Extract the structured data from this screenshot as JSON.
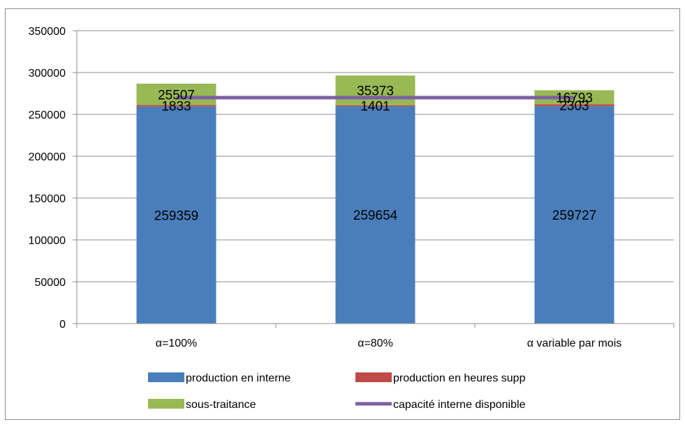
{
  "chart_data": {
    "type": "bar",
    "stacked": true,
    "categories": [
      "α=100%",
      "α=80%",
      "α variable par mois"
    ],
    "series": [
      {
        "name": "production en interne",
        "values": [
          259359,
          259654,
          259727
        ],
        "color": "#4a7ebb"
      },
      {
        "name": "production en heures supp",
        "values": [
          1833,
          1401,
          2303
        ],
        "color": "#be4b48"
      },
      {
        "name": "sous-traitance",
        "values": [
          25507,
          35373,
          16793
        ],
        "color": "#98b954"
      }
    ],
    "line": {
      "name": "capacité interne disponible",
      "value": 270000,
      "color": "#7d60a0"
    },
    "ylim": [
      0,
      350000
    ],
    "yticks": [
      "0",
      "50000",
      "100000",
      "150000",
      "200000",
      "250000",
      "300000",
      "350000"
    ],
    "grid": true,
    "legend_position": "bottom"
  }
}
